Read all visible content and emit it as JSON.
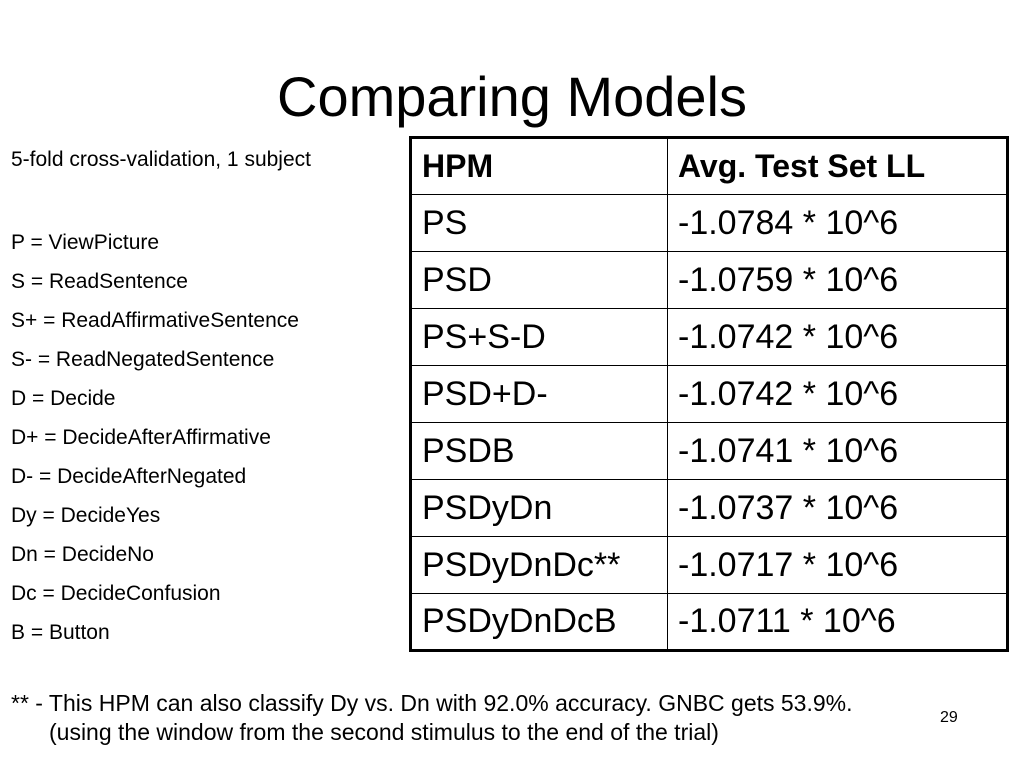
{
  "slide": {
    "title": "Comparing Models",
    "intro": "5-fold cross-validation, 1 subject",
    "legend": [
      "P = ViewPicture",
      "S = ReadSentence",
      "S+ = ReadAffirmativeSentence",
      "S- = ReadNegatedSentence",
      "D = Decide",
      "D+ = DecideAfterAffirmative",
      "D- = DecideAfterNegated",
      "Dy = DecideYes",
      "Dn = DecideNo",
      "Dc = DecideConfusion",
      "B = Button"
    ],
    "table": {
      "headers": [
        "HPM",
        "Avg. Test Set LL"
      ],
      "rows": [
        [
          "PS",
          "-1.0784 * 10^6"
        ],
        [
          "PSD",
          "-1.0759 * 10^6"
        ],
        [
          "PS+S-D",
          "-1.0742 * 10^6"
        ],
        [
          "PSD+D-",
          "-1.0742 * 10^6"
        ],
        [
          "PSDB",
          "-1.0741 * 10^6"
        ],
        [
          "PSDyDn",
          "-1.0737 * 10^6"
        ],
        [
          "PSDyDnDc**",
          "-1.0717 * 10^6"
        ],
        [
          "PSDyDnDcB",
          "-1.0711 * 10^6"
        ]
      ]
    },
    "footnote": {
      "line1": "** - This HPM can also classify Dy vs. Dn with 92.0% accuracy.  GNBC gets 53.9%.",
      "line2": "(using the window from the second stimulus to the end of the trial)"
    },
    "page_number": "29"
  }
}
